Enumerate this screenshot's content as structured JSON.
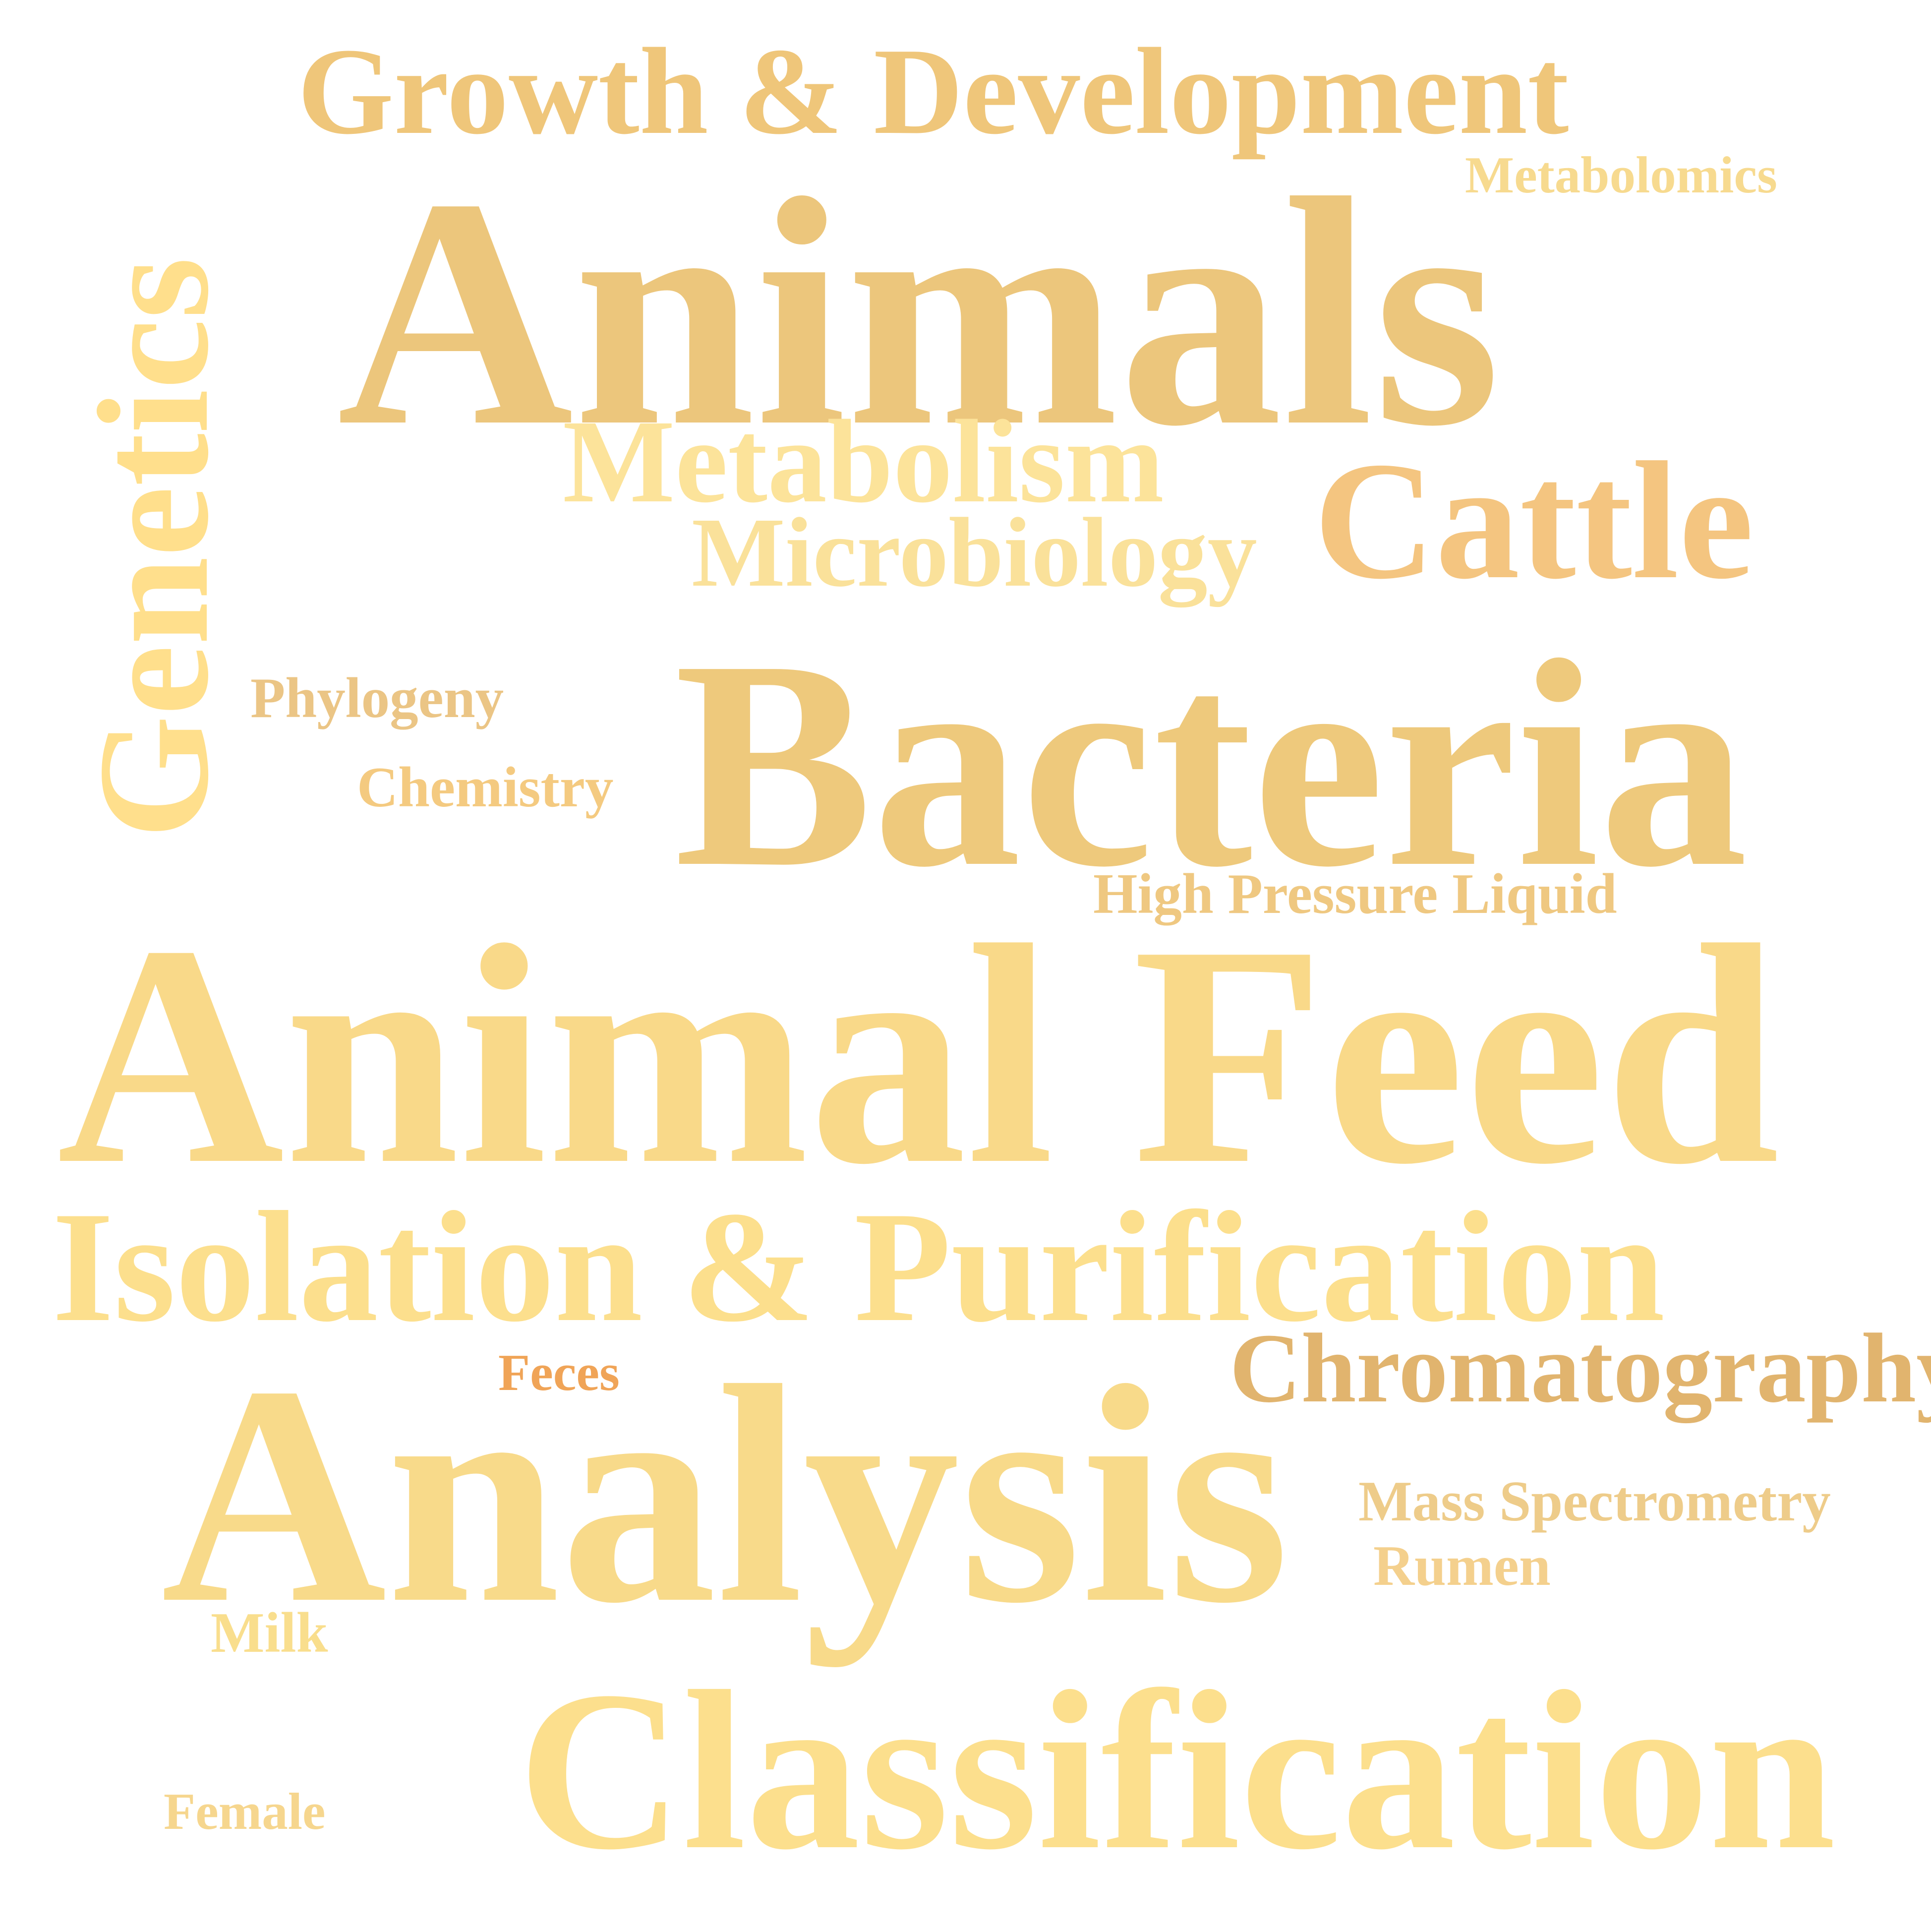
{
  "words": {
    "growth": {
      "text": "Growth & Development",
      "color": "#EFC67A"
    },
    "metabolomics": {
      "text": "Metabolomics",
      "color": "#F7DA8F"
    },
    "animals": {
      "text": "Animals",
      "color": "#ECC67C"
    },
    "genetics": {
      "text": "Genetics",
      "color": "#FFDF8C"
    },
    "metabolism": {
      "text": "Metabolism",
      "color": "#FCE39A"
    },
    "microbiology": {
      "text": "Microbiology",
      "color": "#FAE19A"
    },
    "cattle": {
      "text": "Cattle",
      "color": "#F4C580"
    },
    "phylogeny": {
      "text": "Phylogeny",
      "color": "#EBC585"
    },
    "chemistry": {
      "text": "Chemistry",
      "color": "#F4CA80"
    },
    "bacteria": {
      "text": "Bacteria",
      "color": "#EEC97C"
    },
    "hplc": {
      "text": "High Pressure Liquid",
      "color": "#EFC881"
    },
    "animalfeed": {
      "text": "Animal Feed",
      "color": "#F9D989"
    },
    "isolation": {
      "text": "Isolation & Purification",
      "color": "#FCDF8D"
    },
    "feces": {
      "text": "Feces",
      "color": "#F0A457"
    },
    "chromato": {
      "text": "Chromatography",
      "color": "#E1B46E"
    },
    "analysis": {
      "text": "Analysis",
      "color": "#F8DA8A"
    },
    "massspec": {
      "text": "Mass Spectrometry",
      "color": "#EECC8A"
    },
    "rumen": {
      "text": "Rumen",
      "color": "#F4D08D"
    },
    "milk": {
      "text": "Milk",
      "color": "#F9DE8D"
    },
    "classif": {
      "text": "Classification",
      "color": "#FCDF8D"
    },
    "female": {
      "text": "Female",
      "color": "#F6D68E"
    }
  }
}
